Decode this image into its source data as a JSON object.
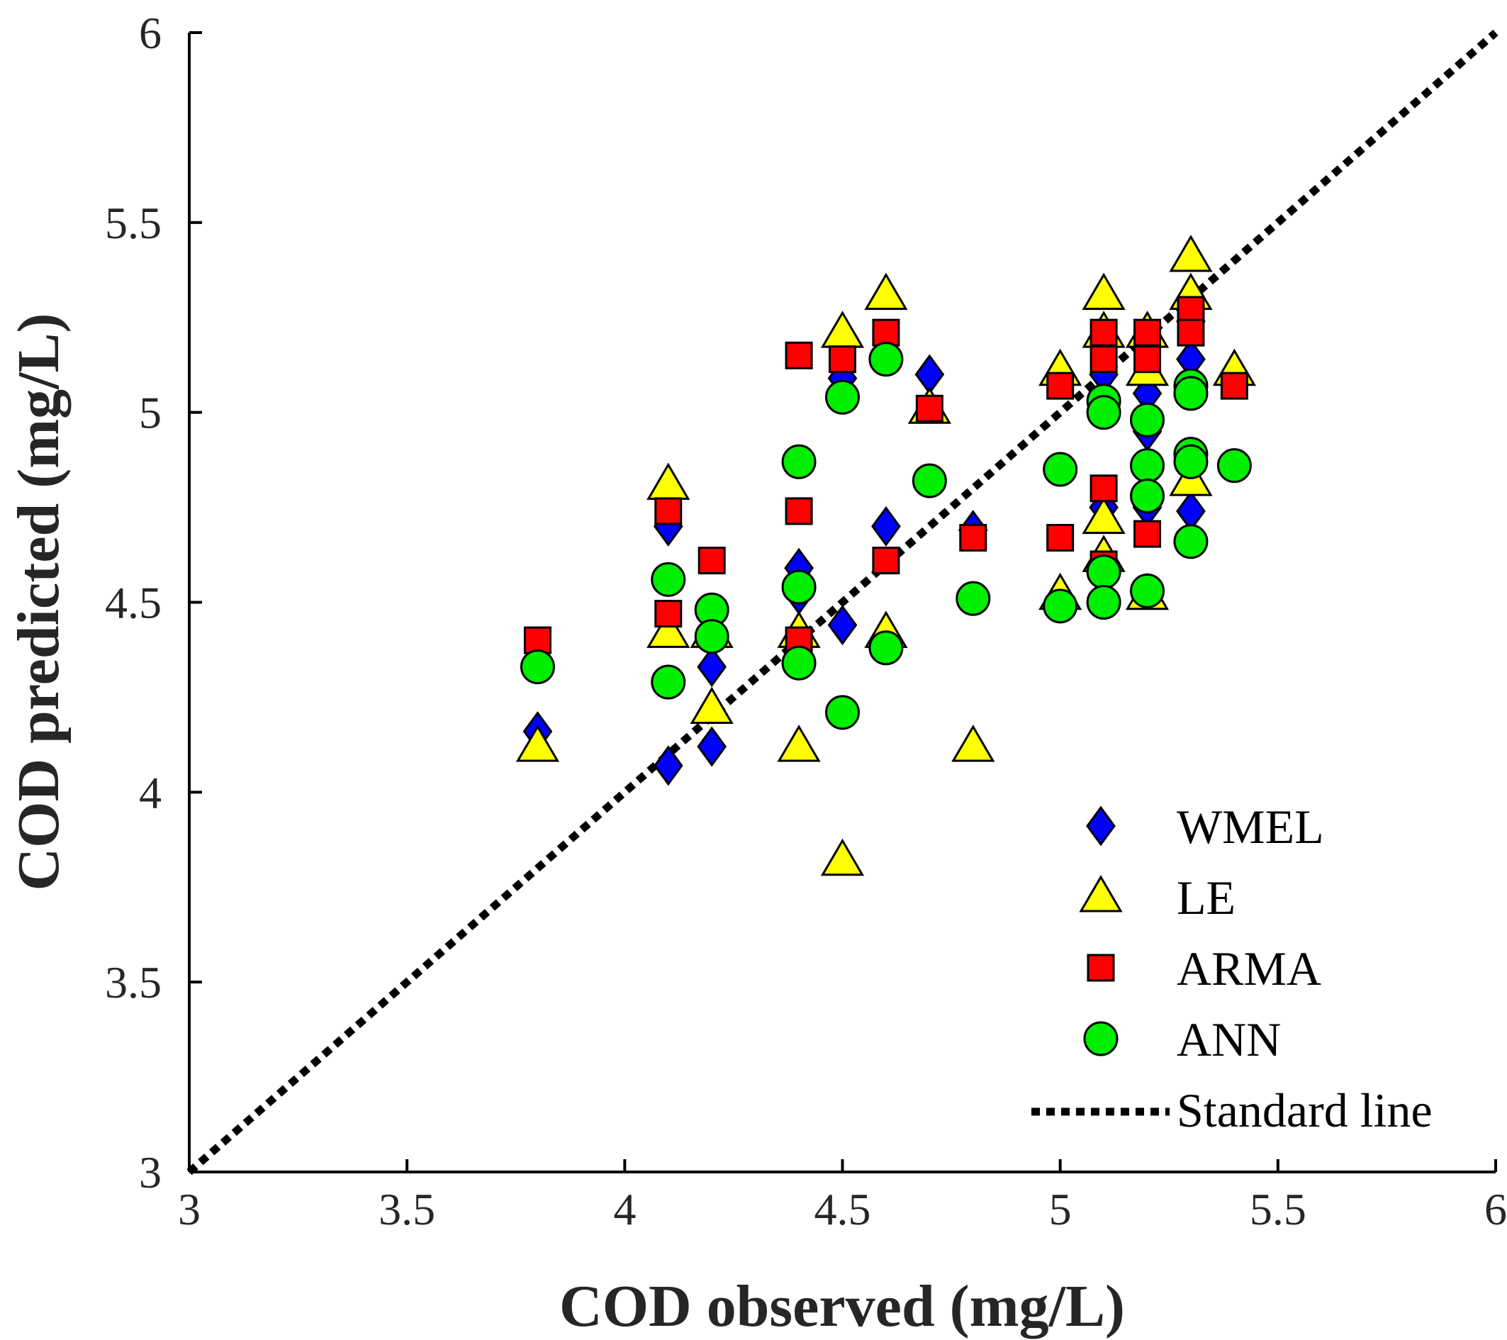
{
  "chart_data": {
    "type": "scatter",
    "xlabel": "COD observed (mg/L)",
    "ylabel": "COD predicted (mg/L)",
    "xlim": [
      3,
      6
    ],
    "ylim": [
      3,
      6
    ],
    "xticks": [
      "3",
      "3.5",
      "4",
      "4.5",
      "5",
      "5.5",
      "6"
    ],
    "yticks": [
      "3",
      "3.5",
      "4",
      "4.5",
      "5",
      "5.5",
      "6"
    ],
    "grid": false,
    "legend_position": "bottom-right",
    "series": [
      {
        "name": "WMEL",
        "marker": "diamond",
        "color": "#0000ff",
        "points": [
          [
            3.8,
            4.16
          ],
          [
            4.1,
            4.7
          ],
          [
            4.1,
            4.07
          ],
          [
            4.2,
            4.33
          ],
          [
            4.2,
            4.12
          ],
          [
            4.4,
            4.59
          ],
          [
            4.4,
            4.52
          ],
          [
            4.5,
            5.09
          ],
          [
            4.5,
            4.44
          ],
          [
            4.6,
            4.7
          ],
          [
            4.7,
            5.1
          ],
          [
            4.8,
            4.69
          ],
          [
            5.1,
            5.1
          ],
          [
            5.1,
            4.75
          ],
          [
            5.2,
            5.05
          ],
          [
            5.2,
            4.95
          ],
          [
            5.2,
            4.75
          ],
          [
            5.3,
            5.24
          ],
          [
            5.3,
            5.14
          ],
          [
            5.3,
            4.74
          ],
          [
            5.4,
            5.1
          ]
        ]
      },
      {
        "name": "LE",
        "marker": "triangle",
        "color": "#ffff00",
        "points": [
          [
            3.8,
            4.12
          ],
          [
            4.1,
            4.81
          ],
          [
            4.1,
            4.42
          ],
          [
            4.2,
            4.22
          ],
          [
            4.2,
            4.42
          ],
          [
            4.4,
            4.12
          ],
          [
            4.4,
            4.42
          ],
          [
            4.5,
            5.21
          ],
          [
            4.5,
            3.82
          ],
          [
            4.6,
            5.31
          ],
          [
            4.6,
            4.42
          ],
          [
            4.7,
            5.01
          ],
          [
            4.8,
            4.12
          ],
          [
            5.0,
            5.11
          ],
          [
            5.0,
            4.52
          ],
          [
            5.1,
            5.31
          ],
          [
            5.1,
            5.21
          ],
          [
            5.1,
            4.72
          ],
          [
            5.1,
            4.62
          ],
          [
            5.2,
            5.21
          ],
          [
            5.2,
            5.11
          ],
          [
            5.2,
            4.52
          ],
          [
            5.3,
            5.41
          ],
          [
            5.3,
            5.31
          ],
          [
            5.3,
            4.82
          ],
          [
            5.4,
            5.11
          ]
        ]
      },
      {
        "name": "ARMA",
        "marker": "square",
        "color": "#ff0000",
        "points": [
          [
            3.8,
            4.4
          ],
          [
            4.1,
            4.74
          ],
          [
            4.1,
            4.47
          ],
          [
            4.2,
            4.61
          ],
          [
            4.4,
            5.15
          ],
          [
            4.4,
            4.74
          ],
          [
            4.4,
            4.4
          ],
          [
            4.5,
            5.14
          ],
          [
            4.6,
            5.21
          ],
          [
            4.6,
            4.61
          ],
          [
            4.7,
            5.01
          ],
          [
            4.8,
            4.67
          ],
          [
            5.0,
            5.07
          ],
          [
            5.0,
            4.67
          ],
          [
            5.1,
            5.21
          ],
          [
            5.1,
            5.14
          ],
          [
            5.1,
            4.8
          ],
          [
            5.1,
            4.6
          ],
          [
            5.2,
            5.21
          ],
          [
            5.2,
            5.14
          ],
          [
            5.2,
            4.68
          ],
          [
            5.3,
            5.27
          ],
          [
            5.3,
            5.21
          ],
          [
            5.4,
            5.07
          ]
        ]
      },
      {
        "name": "ANN",
        "marker": "circle",
        "color": "#00ee00",
        "points": [
          [
            3.8,
            4.33
          ],
          [
            4.1,
            4.56
          ],
          [
            4.1,
            4.29
          ],
          [
            4.2,
            4.48
          ],
          [
            4.2,
            4.41
          ],
          [
            4.4,
            4.87
          ],
          [
            4.4,
            4.54
          ],
          [
            4.4,
            4.34
          ],
          [
            4.5,
            5.04
          ],
          [
            4.5,
            4.21
          ],
          [
            4.6,
            5.14
          ],
          [
            4.6,
            4.38
          ],
          [
            4.7,
            4.82
          ],
          [
            4.8,
            4.51
          ],
          [
            5.0,
            4.85
          ],
          [
            5.0,
            4.49
          ],
          [
            5.1,
            5.03
          ],
          [
            5.1,
            5.0
          ],
          [
            5.1,
            4.58
          ],
          [
            5.1,
            4.5
          ],
          [
            5.2,
            4.98
          ],
          [
            5.2,
            4.86
          ],
          [
            5.2,
            4.78
          ],
          [
            5.2,
            4.53
          ],
          [
            5.3,
            5.07
          ],
          [
            5.3,
            5.05
          ],
          [
            5.3,
            4.89
          ],
          [
            5.3,
            4.87
          ],
          [
            5.3,
            4.66
          ],
          [
            5.4,
            4.86
          ]
        ]
      },
      {
        "name": "Standard line",
        "marker": "dotted-line",
        "color": "#000000",
        "points": [
          [
            3,
            3
          ],
          [
            6,
            6
          ]
        ]
      }
    ]
  }
}
